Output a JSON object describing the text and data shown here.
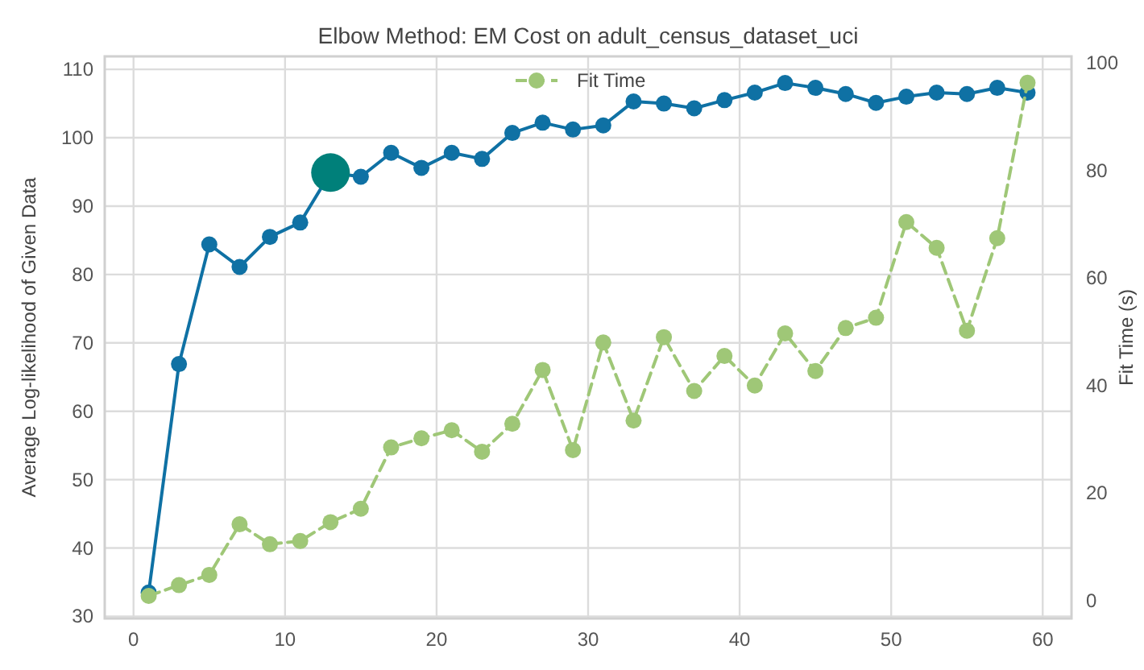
{
  "chart_data": {
    "type": "line",
    "title": "Elbow Method: EM Cost on adult_census_dataset_uci",
    "ylabel": "Average Log-likelihood of Given Data",
    "y2label": "Fit Time (s)",
    "x": [
      1,
      3,
      5,
      7,
      9,
      11,
      13,
      15,
      17,
      19,
      21,
      23,
      25,
      27,
      29,
      31,
      33,
      35,
      37,
      39,
      41,
      43,
      45,
      47,
      49,
      51,
      53,
      55,
      57,
      59
    ],
    "xlim": [
      -1.9,
      61.9
    ],
    "xticks": [
      0,
      10,
      20,
      30,
      40,
      50,
      60
    ],
    "ylim": [
      29.7,
      111.9
    ],
    "yticks": [
      30,
      40,
      50,
      60,
      70,
      80,
      90,
      100,
      110
    ],
    "y2lim": [
      -3.3,
      101.2
    ],
    "y2ticks": [
      0,
      20,
      40,
      60,
      80,
      100
    ],
    "grid": true,
    "legend": "top",
    "marker": "circle",
    "series": [
      {
        "color": "#0f71a4",
        "values": [
          33.5,
          66.9,
          84.4,
          81.1,
          85.5,
          87.6,
          94.9,
          94.3,
          97.8,
          95.6,
          97.8,
          96.9,
          100.7,
          102.2,
          101.2,
          101.8,
          105.3,
          105.0,
          104.3,
          105.5,
          106.6,
          108.0,
          107.3,
          106.4,
          105.1,
          106.0,
          106.6,
          106.4,
          107.3,
          106.6
        ]
      },
      {
        "name": "Fit Time",
        "color": "#9fc777",
        "axis": "y2",
        "line_style": "dashed",
        "values": [
          0.9,
          2.9,
          4.8,
          14.2,
          10.5,
          11.1,
          14.6,
          17.1,
          28.5,
          30.2,
          31.7,
          27.7,
          32.9,
          42.9,
          28.0,
          48.0,
          33.5,
          49.0,
          39.0,
          45.5,
          40.0,
          49.7,
          42.7,
          50.7,
          52.6,
          70.4,
          65.6,
          50.2,
          67.4,
          96.3
        ]
      },
      {
        "type": "scatter",
        "x": [
          13
        ],
        "color": "#00807a",
        "values": [
          94.9
        ]
      }
    ]
  }
}
